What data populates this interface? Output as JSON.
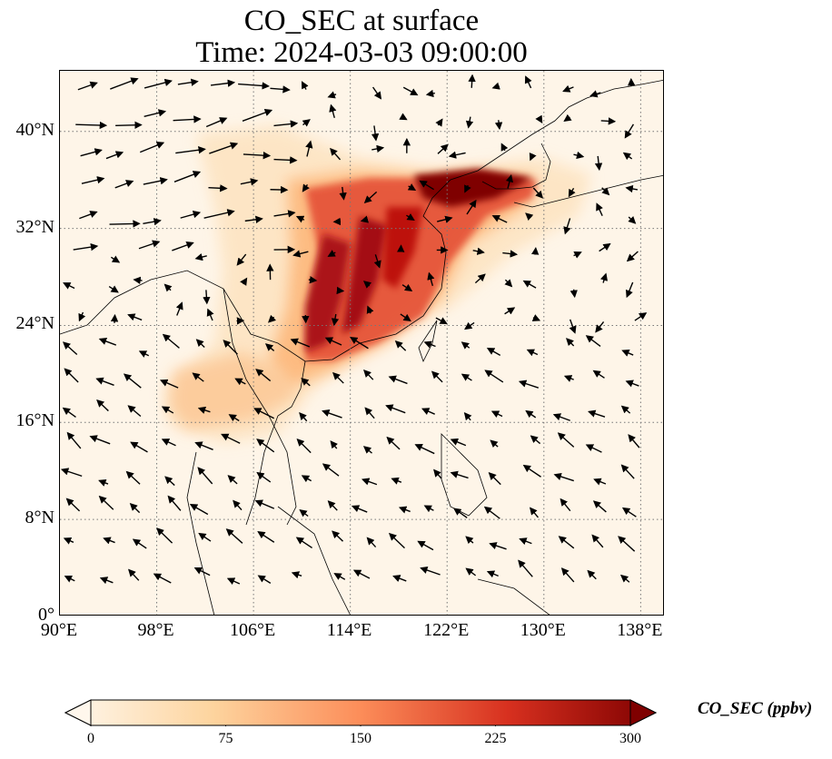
{
  "title": {
    "line1": "CO_SEC at surface",
    "line2": "Time: 2024-03-03 09:00:00"
  },
  "map": {
    "lon_range": [
      90,
      140
    ],
    "lat_range": [
      0,
      45
    ],
    "lat_ticks": [
      {
        "value": 0,
        "label": "0°"
      },
      {
        "value": 8,
        "label": "8°N"
      },
      {
        "value": 16,
        "label": "16°N"
      },
      {
        "value": 24,
        "label": "24°N"
      },
      {
        "value": 32,
        "label": "32°N"
      },
      {
        "value": 40,
        "label": "40°N"
      }
    ],
    "lon_ticks": [
      {
        "value": 90,
        "label": "90°E"
      },
      {
        "value": 98,
        "label": "98°E"
      },
      {
        "value": 106,
        "label": "106°E"
      },
      {
        "value": 114,
        "label": "114°E"
      },
      {
        "value": 122,
        "label": "122°E"
      },
      {
        "value": 130,
        "label": "130°E"
      },
      {
        "value": 138,
        "label": "138°E"
      }
    ],
    "gridlines": "dotted",
    "wind_vectors": true
  },
  "colorbar": {
    "label": "CO_SEC (ppbv)",
    "min": 0,
    "max": 300,
    "extend": "both",
    "colormap": "OrRd",
    "ticks": [
      {
        "value": 0,
        "label": "0"
      },
      {
        "value": 75,
        "label": "75"
      },
      {
        "value": 150,
        "label": "150"
      },
      {
        "value": 225,
        "label": "225"
      },
      {
        "value": 300,
        "label": "300"
      }
    ],
    "colors": [
      "#fff7ec",
      "#fdd49e",
      "#fc8d59",
      "#d7301f",
      "#7f0000"
    ]
  }
}
